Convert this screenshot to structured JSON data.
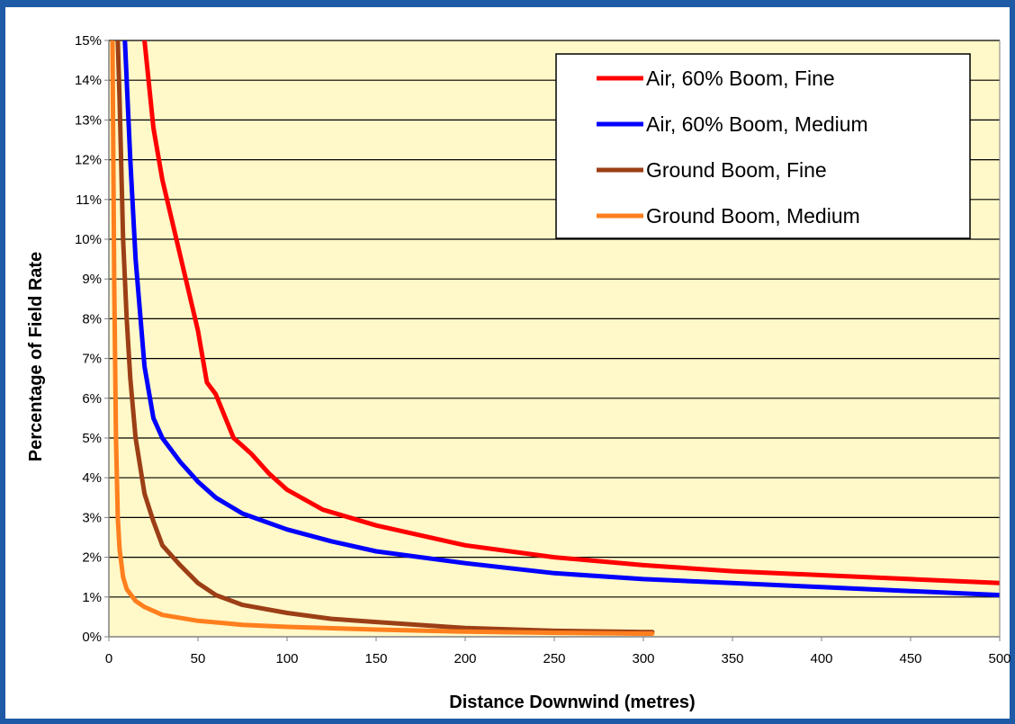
{
  "chart_data": {
    "type": "line",
    "title": "",
    "xlabel": "Distance Downwind (metres)",
    "ylabel": "Percentage of Field Rate",
    "xlim": [
      0,
      500
    ],
    "ylim": [
      0,
      15
    ],
    "x_ticks": [
      0,
      50,
      100,
      150,
      200,
      250,
      300,
      350,
      400,
      450,
      500
    ],
    "x_tick_labels": [
      "0",
      "50",
      "100",
      "150",
      "200",
      "250",
      "300",
      "350",
      "400",
      "450",
      "500"
    ],
    "y_ticks": [
      0,
      1,
      2,
      3,
      4,
      5,
      6,
      7,
      8,
      9,
      10,
      11,
      12,
      13,
      14,
      15
    ],
    "y_tick_labels": [
      "0%",
      "1%",
      "2%",
      "3%",
      "4%",
      "5%",
      "6%",
      "7%",
      "8%",
      "9%",
      "10%",
      "11%",
      "12%",
      "13%",
      "14%",
      "15%"
    ],
    "grid": "horizontal",
    "legend_position": "top-right",
    "background_color": "#fff8c8",
    "series": [
      {
        "name": "Air, 60% Boom, Fine",
        "color": "#ff0000",
        "x": [
          20,
          25,
          30,
          40,
          50,
          55,
          60,
          70,
          75,
          80,
          90,
          100,
          120,
          150,
          200,
          250,
          300,
          350,
          400,
          450,
          500
        ],
        "y": [
          15,
          12.8,
          11.5,
          9.6,
          7.7,
          6.4,
          6.1,
          5.0,
          4.8,
          4.6,
          4.1,
          3.7,
          3.2,
          2.8,
          2.3,
          2.0,
          1.8,
          1.65,
          1.55,
          1.45,
          1.35
        ]
      },
      {
        "name": "Air, 60% Boom, Medium",
        "color": "#0000ff",
        "x": [
          9,
          12,
          15,
          20,
          25,
          30,
          40,
          50,
          60,
          75,
          100,
          125,
          150,
          200,
          250,
          300,
          350,
          400,
          450,
          500
        ],
        "y": [
          15,
          12.0,
          9.5,
          6.8,
          5.5,
          5.0,
          4.4,
          3.9,
          3.5,
          3.1,
          2.7,
          2.4,
          2.15,
          1.85,
          1.6,
          1.45,
          1.35,
          1.25,
          1.15,
          1.05
        ]
      },
      {
        "name": "Ground Boom, Fine",
        "color": "#9c3f16",
        "x": [
          5,
          6,
          8,
          10,
          12,
          15,
          20,
          25,
          30,
          40,
          50,
          60,
          75,
          100,
          125,
          150,
          200,
          250,
          300,
          305
        ],
        "y": [
          15,
          13.5,
          10.0,
          8.0,
          6.5,
          5.0,
          3.6,
          2.9,
          2.3,
          1.8,
          1.35,
          1.05,
          0.8,
          0.6,
          0.45,
          0.37,
          0.22,
          0.15,
          0.12,
          0.12
        ]
      },
      {
        "name": "Ground Boom, Medium",
        "color": "#ff7f1e",
        "x": [
          2,
          3,
          4,
          5,
          6,
          8,
          10,
          15,
          20,
          30,
          50,
          75,
          100,
          150,
          200,
          250,
          300,
          305
        ],
        "y": [
          15,
          9.0,
          5.0,
          3.0,
          2.2,
          1.5,
          1.2,
          0.9,
          0.75,
          0.55,
          0.4,
          0.3,
          0.25,
          0.18,
          0.13,
          0.1,
          0.08,
          0.08
        ]
      }
    ]
  }
}
